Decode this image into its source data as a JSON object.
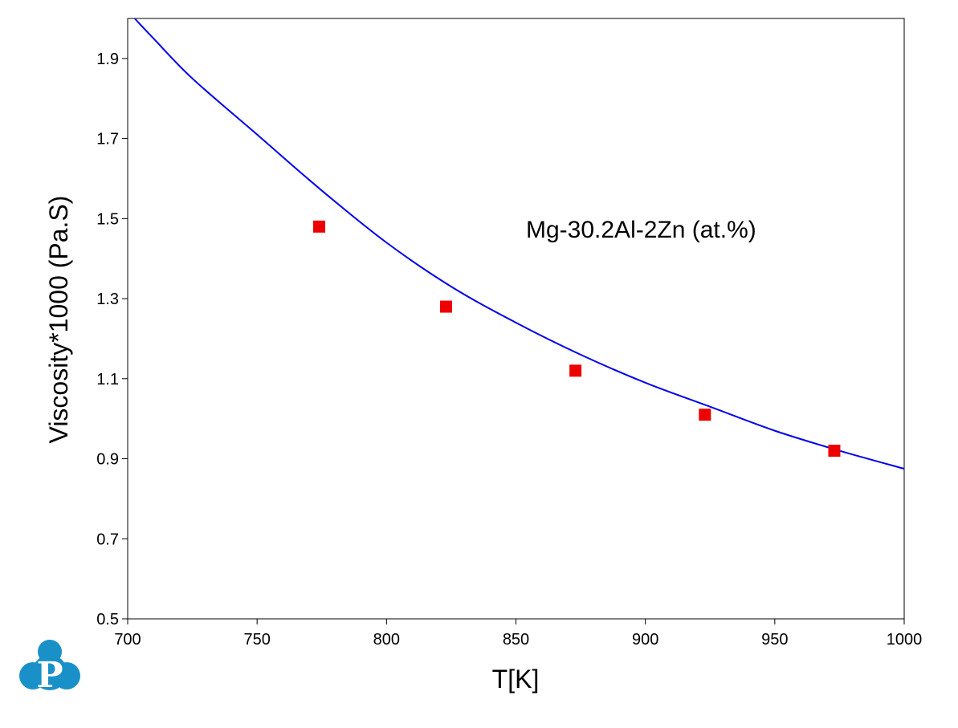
{
  "chart_data": {
    "type": "scatter",
    "xlabel": "T[K]",
    "ylabel": "Viscosity*1000 (Pa.S)",
    "xlim": [
      700,
      1000
    ],
    "ylim": [
      0.5,
      2.0
    ],
    "x_ticks": [
      700,
      750,
      800,
      850,
      900,
      950,
      1000
    ],
    "y_ticks": [
      0.5,
      0.7,
      0.9,
      1.1,
      1.3,
      1.5,
      1.7,
      1.9
    ],
    "y_tick_labels": [
      "0.5",
      "0.7",
      "0.9",
      "1.1",
      "1.3",
      "1.5",
      "1.7",
      "1.9"
    ],
    "annotation": "Mg-30.2Al-2Zn (at.%)",
    "grid": false,
    "series": [
      {
        "kind": "line",
        "color": "#0000ee",
        "points": [
          [
            702.7,
            2.0
          ],
          [
            710,
            1.95
          ],
          [
            725,
            1.85
          ],
          [
            750,
            1.71
          ],
          [
            775,
            1.57
          ],
          [
            800,
            1.44
          ],
          [
            825,
            1.33
          ],
          [
            850,
            1.24
          ],
          [
            875,
            1.16
          ],
          [
            900,
            1.09
          ],
          [
            925,
            1.03
          ],
          [
            950,
            0.97
          ],
          [
            975,
            0.92
          ],
          [
            1000,
            0.875
          ]
        ]
      },
      {
        "kind": "scatter",
        "marker": "square",
        "color": "#ee0000",
        "points": [
          [
            774,
            1.48
          ],
          [
            823,
            1.28
          ],
          [
            873,
            1.12
          ],
          [
            923,
            1.01
          ],
          [
            973,
            0.92
          ]
        ]
      }
    ]
  },
  "logo": {
    "letter": "P",
    "color": "#1a90c8"
  }
}
